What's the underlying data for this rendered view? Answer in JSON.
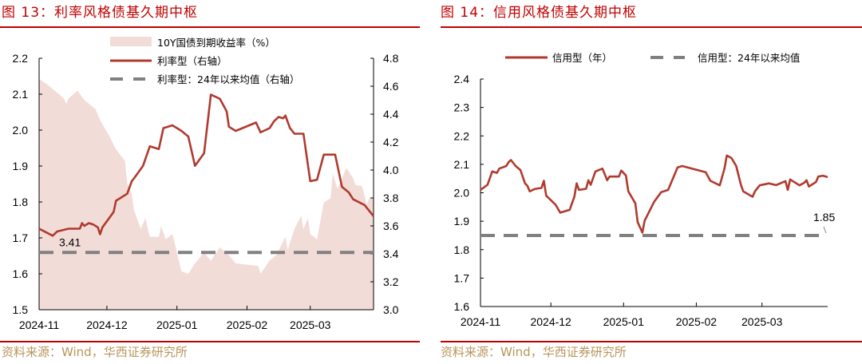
{
  "figures": [
    {
      "title": "图 13：利率风格债基久期中枢",
      "source": "资料来源：Wind，华西证券研究所"
    },
    {
      "title": "图 14：信用风格债基久期中枢",
      "source": "资料来源：Wind，华西证券研究所"
    }
  ],
  "colors": {
    "title": "#c00000",
    "source": "#b8955a",
    "line": "#b03a2e",
    "area": "#f2dcd8",
    "dashed": "#808080"
  },
  "chart_data": [
    {
      "type": "line+area",
      "x_range": [
        "2024-11-01",
        "2025-03-29"
      ],
      "x_ticks": [
        "2024-11",
        "2024-12",
        "2025-01",
        "2025-02",
        "2025-03"
      ],
      "y_left": {
        "range": [
          1.5,
          2.2
        ],
        "ticks": [
          "1.5",
          "1.6",
          "1.7",
          "1.8",
          "1.9",
          "2.0",
          "2.1",
          "2.2"
        ]
      },
      "y_right": {
        "range": [
          3.0,
          4.8
        ],
        "ticks": [
          "3.0",
          "3.2",
          "3.4",
          "3.6",
          "3.8",
          "4.0",
          "4.2",
          "4.4",
          "4.6",
          "4.8"
        ]
      },
      "legend_position": "top",
      "grid": false,
      "series": [
        {
          "name": "10Y国债到期收益率（%）",
          "type": "area",
          "axis": "left",
          "points": [
            [
              "2024-11-01",
              2.143
            ],
            [
              "2024-11-05",
              2.125
            ],
            [
              "2024-11-06",
              2.12
            ],
            [
              "2024-11-12",
              2.088
            ],
            [
              "2024-11-13",
              2.073
            ],
            [
              "2024-11-14",
              2.088
            ],
            [
              "2024-11-18",
              2.11
            ],
            [
              "2024-11-21",
              2.084
            ],
            [
              "2024-11-26",
              2.058
            ],
            [
              "2024-11-28",
              2.028
            ],
            [
              "2024-12-02",
              1.984
            ],
            [
              "2024-12-05",
              1.947
            ],
            [
              "2024-12-09",
              1.914
            ],
            [
              "2024-12-10",
              1.851
            ],
            [
              "2024-12-12",
              1.822
            ],
            [
              "2024-12-13",
              1.777
            ],
            [
              "2024-12-16",
              1.725
            ],
            [
              "2024-12-18",
              1.755
            ],
            [
              "2024-12-20",
              1.703
            ],
            [
              "2024-12-24",
              1.703
            ],
            [
              "2024-12-25",
              1.733
            ],
            [
              "2024-12-27",
              1.696
            ],
            [
              "2024-12-30",
              1.711
            ],
            [
              "2025-01-03",
              1.607
            ],
            [
              "2025-01-06",
              1.6
            ],
            [
              "2025-01-09",
              1.629
            ],
            [
              "2025-01-13",
              1.659
            ],
            [
              "2025-01-16",
              1.637
            ],
            [
              "2025-01-20",
              1.674
            ],
            [
              "2025-01-24",
              1.652
            ],
            [
              "2025-01-27",
              1.629
            ],
            [
              "2025-02-06",
              1.622
            ],
            [
              "2025-02-07",
              1.6
            ],
            [
              "2025-02-11",
              1.637
            ],
            [
              "2025-02-14",
              1.652
            ],
            [
              "2025-02-18",
              1.703
            ],
            [
              "2025-02-19",
              1.666
            ],
            [
              "2025-02-22",
              1.725
            ],
            [
              "2025-02-25",
              1.762
            ],
            [
              "2025-02-26",
              1.725
            ],
            [
              "2025-02-28",
              1.755
            ],
            [
              "2025-03-01",
              1.711
            ],
            [
              "2025-03-04",
              1.696
            ],
            [
              "2025-03-07",
              1.799
            ],
            [
              "2025-03-10",
              1.81
            ],
            [
              "2025-03-11",
              1.881
            ],
            [
              "2025-03-13",
              1.836
            ],
            [
              "2025-03-17",
              1.895
            ],
            [
              "2025-03-20",
              1.866
            ],
            [
              "2025-03-21",
              1.847
            ],
            [
              "2025-03-24",
              1.844
            ],
            [
              "2025-03-26",
              1.792
            ],
            [
              "2025-03-27",
              1.81
            ],
            [
              "2025-03-29",
              1.81
            ]
          ]
        },
        {
          "name": "利率型（右轴）",
          "type": "line",
          "axis": "right",
          "points": [
            [
              "2024-11-01",
              3.58
            ],
            [
              "2024-11-07",
              3.53
            ],
            [
              "2024-11-09",
              3.56
            ],
            [
              "2024-11-14",
              3.58
            ],
            [
              "2024-11-19",
              3.58
            ],
            [
              "2024-11-20",
              3.62
            ],
            [
              "2024-11-21",
              3.6
            ],
            [
              "2024-11-23",
              3.62
            ],
            [
              "2024-11-25",
              3.61
            ],
            [
              "2024-11-27",
              3.59
            ],
            [
              "2024-11-28",
              3.54
            ],
            [
              "2024-11-29",
              3.59
            ],
            [
              "2024-12-04",
              3.7
            ],
            [
              "2024-12-05",
              3.78
            ],
            [
              "2024-12-10",
              3.83
            ],
            [
              "2024-12-12",
              3.92
            ],
            [
              "2024-12-13",
              3.94
            ],
            [
              "2024-12-17",
              4.03
            ],
            [
              "2024-12-20",
              4.17
            ],
            [
              "2024-12-24",
              4.15
            ],
            [
              "2024-12-26",
              4.3
            ],
            [
              "2024-12-30",
              4.32
            ],
            [
              "2025-01-03",
              4.28
            ],
            [
              "2025-01-06",
              4.24
            ],
            [
              "2025-01-09",
              4.03
            ],
            [
              "2025-01-13",
              4.12
            ],
            [
              "2025-01-16",
              4.54
            ],
            [
              "2025-01-20",
              4.51
            ],
            [
              "2025-01-23",
              4.42
            ],
            [
              "2025-01-24",
              4.31
            ],
            [
              "2025-01-27",
              4.28
            ],
            [
              "2025-02-05",
              4.34
            ],
            [
              "2025-02-07",
              4.27
            ],
            [
              "2025-02-11",
              4.3
            ],
            [
              "2025-02-13",
              4.35
            ],
            [
              "2025-02-15",
              4.38
            ],
            [
              "2025-02-17",
              4.37
            ],
            [
              "2025-02-18",
              4.39
            ],
            [
              "2025-02-20",
              4.3
            ],
            [
              "2025-02-22",
              4.26
            ],
            [
              "2025-02-26",
              4.26
            ],
            [
              "2025-03-01",
              3.92
            ],
            [
              "2025-03-04",
              3.93
            ],
            [
              "2025-03-07",
              4.11
            ],
            [
              "2025-03-12",
              4.11
            ],
            [
              "2025-03-15",
              3.88
            ],
            [
              "2025-03-18",
              3.84
            ],
            [
              "2025-03-20",
              3.79
            ],
            [
              "2025-03-25",
              3.75
            ],
            [
              "2025-03-29",
              3.67
            ]
          ]
        },
        {
          "name": "利率型：24年以来均值（右轴）",
          "type": "hline",
          "axis": "right",
          "value": 3.41,
          "label": "3.41"
        }
      ]
    },
    {
      "type": "line",
      "x_range": [
        "2024-11-01",
        "2025-03-29"
      ],
      "x_ticks": [
        "2024-11",
        "2024-12",
        "2025-01",
        "2025-02",
        "2025-03"
      ],
      "y": {
        "range": [
          1.6,
          2.4
        ],
        "ticks": [
          "1.6",
          "1.7",
          "1.8",
          "1.9",
          "2.0",
          "2.1",
          "2.2",
          "2.3",
          "2.4"
        ]
      },
      "legend_position": "top",
      "grid": false,
      "series": [
        {
          "name": "信用型（年）",
          "type": "line",
          "points": [
            [
              "2024-11-01",
              2.01
            ],
            [
              "2024-11-04",
              2.028
            ],
            [
              "2024-11-06",
              2.075
            ],
            [
              "2024-11-08",
              2.07
            ],
            [
              "2024-11-09",
              2.085
            ],
            [
              "2024-11-12",
              2.094
            ],
            [
              "2024-11-13",
              2.108
            ],
            [
              "2024-11-14",
              2.115
            ],
            [
              "2024-11-16",
              2.094
            ],
            [
              "2024-11-18",
              2.08
            ],
            [
              "2024-11-20",
              2.033
            ],
            [
              "2024-11-21",
              2.024
            ],
            [
              "2024-11-22",
              2.005
            ],
            [
              "2024-11-24",
              2.013
            ],
            [
              "2024-11-27",
              2.017
            ],
            [
              "2024-11-28",
              2.042
            ],
            [
              "2024-11-29",
              1.99
            ],
            [
              "2024-12-03",
              1.958
            ],
            [
              "2024-12-05",
              1.93
            ],
            [
              "2024-12-09",
              1.94
            ],
            [
              "2024-12-11",
              1.986
            ],
            [
              "2024-12-12",
              2.033
            ],
            [
              "2024-12-13",
              2.01
            ],
            [
              "2024-12-16",
              2.014
            ],
            [
              "2024-12-17",
              2.044
            ],
            [
              "2024-12-18",
              2.028
            ],
            [
              "2024-12-20",
              2.075
            ],
            [
              "2024-12-23",
              2.085
            ],
            [
              "2024-12-25",
              2.044
            ],
            [
              "2024-12-26",
              2.057
            ],
            [
              "2024-12-30",
              2.057
            ],
            [
              "2024-12-31",
              2.078
            ],
            [
              "2025-01-02",
              2.061
            ],
            [
              "2025-01-03",
              2.005
            ],
            [
              "2025-01-06",
              1.963
            ],
            [
              "2025-01-07",
              1.897
            ],
            [
              "2025-01-09",
              1.86
            ],
            [
              "2025-01-10",
              1.902
            ],
            [
              "2025-01-14",
              1.968
            ],
            [
              "2025-01-17",
              2.002
            ],
            [
              "2025-01-20",
              2.01
            ],
            [
              "2025-01-24",
              2.089
            ],
            [
              "2025-01-26",
              2.094
            ],
            [
              "2025-02-05",
              2.072
            ],
            [
              "2025-02-07",
              2.042
            ],
            [
              "2025-02-11",
              2.026
            ],
            [
              "2025-02-13",
              2.085
            ],
            [
              "2025-02-14",
              2.131
            ],
            [
              "2025-02-16",
              2.122
            ],
            [
              "2025-02-18",
              2.094
            ],
            [
              "2025-02-20",
              2.028
            ],
            [
              "2025-02-21",
              2.005
            ],
            [
              "2025-02-25",
              1.986
            ],
            [
              "2025-02-26",
              2.005
            ],
            [
              "2025-02-28",
              2.026
            ],
            [
              "2025-03-04",
              2.033
            ],
            [
              "2025-03-07",
              2.027
            ],
            [
              "2025-03-11",
              2.041
            ],
            [
              "2025-03-12",
              2.01
            ],
            [
              "2025-03-13",
              2.047
            ],
            [
              "2025-03-17",
              2.026
            ],
            [
              "2025-03-19",
              2.035
            ],
            [
              "2025-03-20",
              2.044
            ],
            [
              "2025-03-21",
              2.022
            ],
            [
              "2025-03-24",
              2.038
            ],
            [
              "2025-03-25",
              2.057
            ],
            [
              "2025-03-27",
              2.06
            ],
            [
              "2025-03-29",
              2.055
            ]
          ]
        },
        {
          "name": "信用型：24年以来均值",
          "type": "hline",
          "value": 1.85,
          "label": "1.85"
        }
      ]
    }
  ]
}
